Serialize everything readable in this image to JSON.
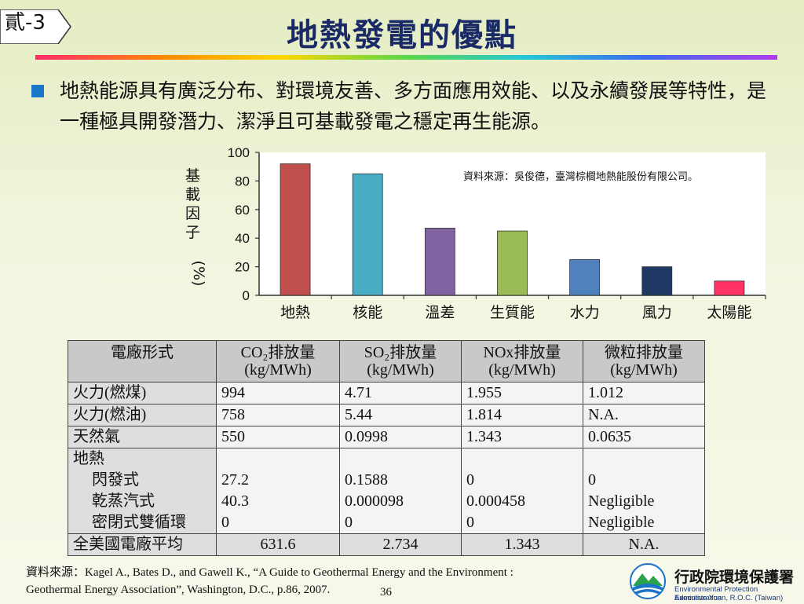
{
  "slide": {
    "tag": "貳-3",
    "title": "地熱發電的優點",
    "bullet": "地熱能源具有廣泛分布、對環境友善、多方面應用效能、以及永續發展等特性，是一種極具開發潛力、潔淨且可基載發電之穩定再生能源。",
    "page_number": "36"
  },
  "chart_data": {
    "type": "bar",
    "categories": [
      "地熱",
      "核能",
      "溫差",
      "生質能",
      "水力",
      "風力",
      "太陽能"
    ],
    "values": [
      92,
      85,
      47,
      45,
      25,
      20,
      10
    ],
    "colors": [
      "#c0504d",
      "#4bacc6",
      "#8064a2",
      "#9bbb59",
      "#4f81bd",
      "#1f3864",
      "#ff3366"
    ],
    "ylabel": "基載因子(%)",
    "ylabel_chars": [
      "基",
      "載",
      "因",
      "子"
    ],
    "ylabel_unit": "(%)",
    "yticks": [
      0,
      20,
      40,
      60,
      80,
      100
    ],
    "ylim": [
      0,
      100
    ],
    "source_note": "資料來源：吳俊德，臺灣棕櫚地熱能股份有限公司。"
  },
  "table": {
    "headers": [
      {
        "line1": "電廠形式",
        "line2": ""
      },
      {
        "line1": "CO₂排放量",
        "line2": "(kg/MWh)"
      },
      {
        "line1": "SO₂排放量",
        "line2": "(kg/MWh)"
      },
      {
        "line1": "NOx排放量",
        "line2": "(kg/MWh)"
      },
      {
        "line1": "微粒排放量",
        "line2": "(kg/MWh)"
      }
    ],
    "rows": [
      {
        "name": "火力(燃煤)",
        "co2": "994",
        "so2": "4.71",
        "nox": "1.955",
        "pm": "1.012"
      },
      {
        "name": "火力(燃油)",
        "co2": "758",
        "so2": "5.44",
        "nox": "1.814",
        "pm": "N.A."
      },
      {
        "name": "天然氣",
        "co2": "550",
        "so2": "0.0998",
        "nox": "1.343",
        "pm": "0.0635"
      }
    ],
    "geothermal": {
      "group": "地熱",
      "subrows": [
        {
          "name": "閃發式",
          "co2": "27.2",
          "so2": "0.1588",
          "nox": "0",
          "pm": "0"
        },
        {
          "name": "乾蒸汽式",
          "co2": "40.3",
          "so2": "0.000098",
          "nox": "0.000458",
          "pm": "Negligible"
        },
        {
          "name": "密閉式雙循環",
          "co2": "0",
          "so2": "0",
          "nox": "0",
          "pm": "Negligible"
        }
      ]
    },
    "average": {
      "name": "全美國電廠平均",
      "co2": "631.6",
      "so2": "2.734",
      "nox": "1.343",
      "pm": "N.A."
    }
  },
  "footer": {
    "source_line1": "資料來源：Kagel A., Bates D., and Gawell K., “A Guide to Geothermal Energy and the Environment :",
    "source_line2": "Geothermal Energy Association”, Washington, D.C., p.86, 2007."
  },
  "org": {
    "name_zh": "行政院環境保護署",
    "name_en1": "Environmental Protection Administration",
    "name_en2": "Executive Yuan, R.O.C. (Taiwan)",
    "logo_icon": "epa-logo-icon"
  }
}
